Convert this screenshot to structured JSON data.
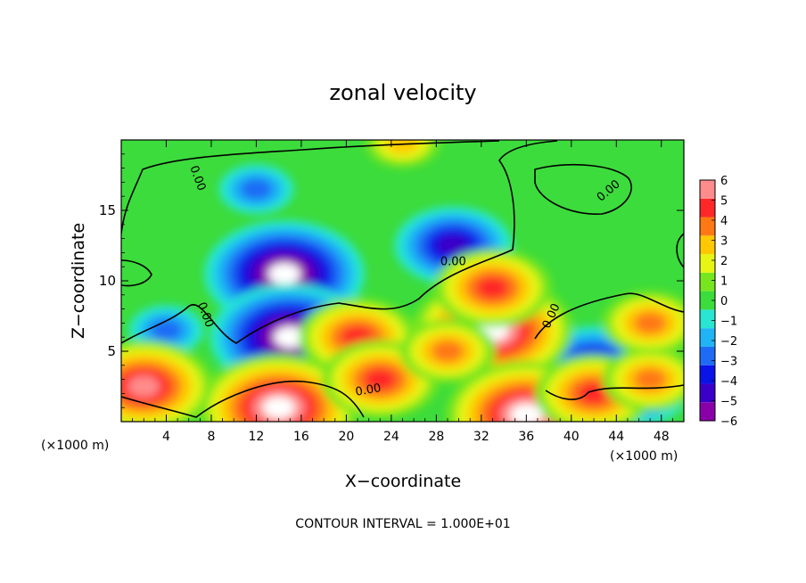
{
  "chart_data": {
    "type": "heatmap",
    "title": "zonal velocity",
    "xlabel": "X−coordinate",
    "ylabel": "Z−coordinate",
    "x_unit_label": "(×1000 m)",
    "x_unit_label_right": "(×1000 m)",
    "footer": "CONTOUR INTERVAL = 1.000E+01",
    "xlim": [
      0,
      50
    ],
    "ylim": [
      0,
      20
    ],
    "x_ticks": [
      4,
      8,
      12,
      16,
      20,
      24,
      28,
      32,
      36,
      40,
      44,
      48
    ],
    "y_ticks": [
      5,
      10,
      15
    ],
    "contour_level_label": "0.00",
    "colorbar": {
      "min": -6,
      "max": 6,
      "tick_labels": [
        "6",
        "5",
        "4",
        "3",
        "2",
        "1",
        "0",
        "−1",
        "−2",
        "−3",
        "−4",
        "−5",
        "−6"
      ],
      "colors": [
        "#8a00a8",
        "#3a00c8",
        "#0a14e6",
        "#1e6cf5",
        "#1eb4f5",
        "#28e6d2",
        "#3cdc3c",
        "#78e61e",
        "#e6f514",
        "#ffc800",
        "#ff7814",
        "#ff2828",
        "#ff8c8c"
      ]
    },
    "features": [
      {
        "type": "low",
        "x": 14.5,
        "z": 10.5,
        "value": -7
      },
      {
        "type": "low",
        "x": 15,
        "z": 6,
        "value": -6.5
      },
      {
        "type": "low",
        "x": 29.5,
        "z": 12.5,
        "value": -4.5
      },
      {
        "type": "low",
        "x": 12,
        "z": 16.5,
        "value": -2.5
      },
      {
        "type": "low",
        "x": 42,
        "z": 4,
        "value": -5
      },
      {
        "type": "low",
        "x": 46,
        "z": 2,
        "value": -3.5
      },
      {
        "type": "low",
        "x": 4,
        "z": 6.5,
        "value": -3
      },
      {
        "type": "low",
        "x": 26,
        "z": 5,
        "value": -2.5
      },
      {
        "type": "low",
        "x": 38,
        "z": 2,
        "value": -3
      },
      {
        "type": "low",
        "x": 20,
        "z": 2,
        "value": -2.5
      },
      {
        "type": "high",
        "x": 14,
        "z": 1,
        "value": 7
      },
      {
        "type": "high",
        "x": 33,
        "z": 6.5,
        "value": 6.5
      },
      {
        "type": "high",
        "x": 33,
        "z": 9.5,
        "value": 5
      },
      {
        "type": "high",
        "x": 2,
        "z": 2.5,
        "value": 6
      },
      {
        "type": "high",
        "x": 21,
        "z": 6,
        "value": 4.5
      },
      {
        "type": "high",
        "x": 23,
        "z": 3,
        "value": 4.5
      },
      {
        "type": "high",
        "x": 29,
        "z": 5,
        "value": 4
      },
      {
        "type": "high",
        "x": 36,
        "z": 0.5,
        "value": 6.5
      },
      {
        "type": "high",
        "x": 42,
        "z": 2,
        "value": 5
      },
      {
        "type": "high",
        "x": 47,
        "z": 3,
        "value": 4
      },
      {
        "type": "high",
        "x": 47,
        "z": 7,
        "value": 4
      },
      {
        "type": "high",
        "x": 25,
        "z": 19.8,
        "value": 3
      }
    ]
  }
}
